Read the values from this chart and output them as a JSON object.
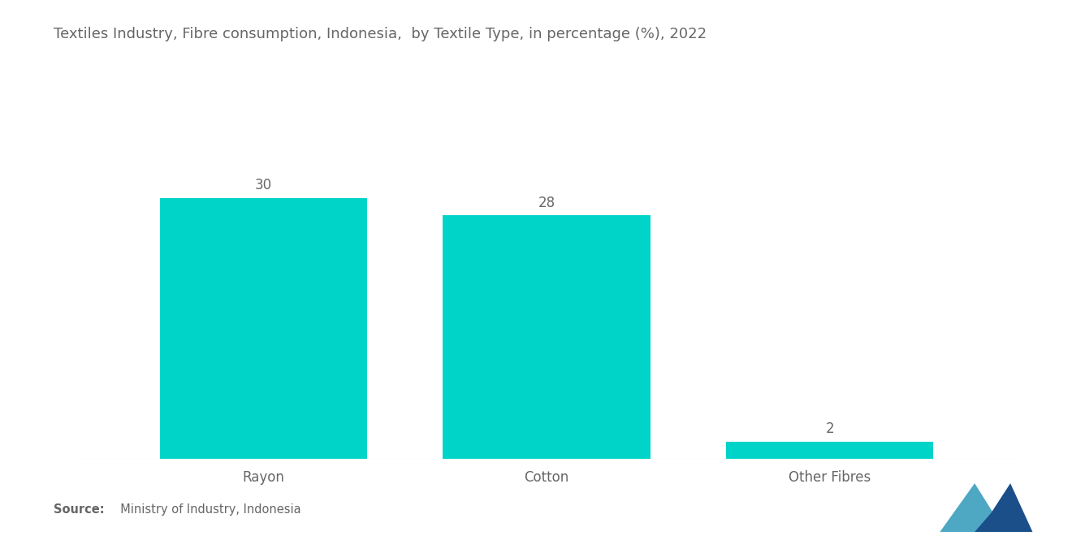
{
  "title": "Textiles Industry, Fibre consumption, Indonesia,  by Textile Type, in percentage (%), 2022",
  "categories": [
    "Rayon",
    "Cotton",
    "Other Fibres"
  ],
  "values": [
    30,
    28,
    2
  ],
  "bar_color": "#00D4C8",
  "background_color": "#ffffff",
  "text_color": "#666666",
  "title_fontsize": 13.0,
  "label_fontsize": 12,
  "value_fontsize": 12,
  "source_bold": "Source:",
  "source_text": "  Ministry of Industry, Indonesia",
  "ylim": [
    0,
    36
  ],
  "bar_width": 0.22
}
